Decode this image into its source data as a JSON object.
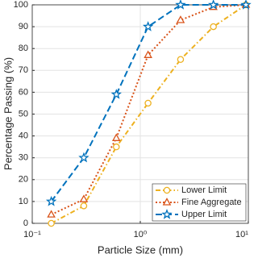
{
  "chart_data": {
    "type": "line",
    "x_label": "Particle Size (mm)",
    "y_label": "Percentage Passing (%)",
    "x": [
      0.15,
      0.3,
      0.6,
      1.18,
      2.36,
      4.75,
      9.5
    ],
    "series": [
      {
        "name": "Lower Limit",
        "color": "#EDB120",
        "dash": "6,3,1.5,3",
        "marker": "circle",
        "values": [
          0,
          8,
          35,
          55,
          75,
          90,
          100
        ]
      },
      {
        "name": "Fine Aggregate",
        "color": "#D95319",
        "dash": "2,2.5",
        "marker": "triangle",
        "values": [
          4,
          11,
          39,
          77,
          93,
          99,
          100
        ]
      },
      {
        "name": "Upper Limit",
        "color": "#0072BD",
        "dash": "8,4",
        "marker": "star",
        "values": [
          10,
          30,
          59,
          90,
          100,
          100,
          100
        ]
      }
    ],
    "x_log": true,
    "xlim": [
      0.1,
      10
    ],
    "xticks": [
      {
        "value": 0.1,
        "label": "10⁻¹"
      },
      {
        "value": 1,
        "label": "10⁰"
      },
      {
        "value": 10,
        "label": "10¹"
      }
    ],
    "ylim": [
      0,
      100
    ],
    "yticks": [
      0,
      10,
      20,
      30,
      40,
      50,
      60,
      70,
      80,
      90,
      100
    ],
    "grid": true,
    "legend": "lower right"
  }
}
